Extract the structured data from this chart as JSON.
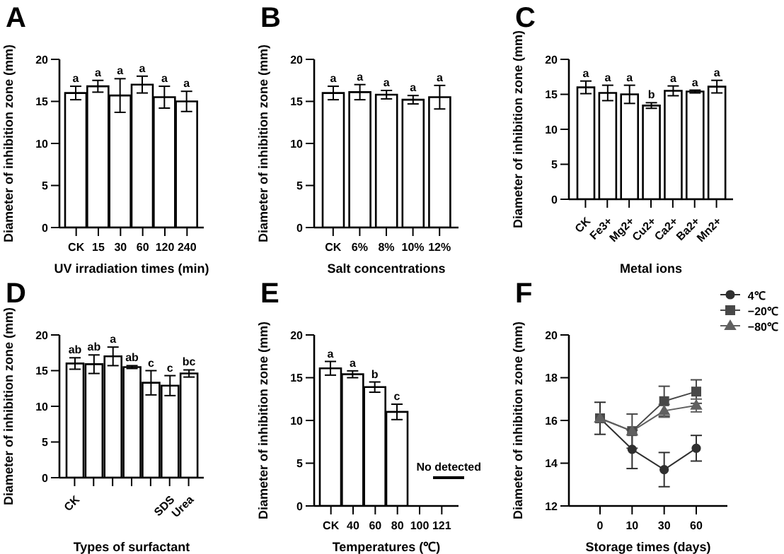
{
  "chart_data": [
    {
      "type": "bar",
      "title": "A",
      "xlabel": "UV irradiation times (min)",
      "ylabel": "Diameter of inhibition zone (mm)",
      "categories": [
        "CK",
        "15",
        "30",
        "60",
        "120",
        "240"
      ],
      "values": [
        16.0,
        16.8,
        15.7,
        17.0,
        15.5,
        15.0
      ],
      "errors": [
        0.8,
        0.7,
        2.0,
        1.0,
        1.3,
        1.2
      ],
      "value_labels": [
        "a",
        "a",
        "a",
        "a",
        "a",
        "a"
      ],
      "color": "#ffffff",
      "ylim": [
        0,
        20
      ],
      "yticks": [
        0,
        5,
        10,
        15,
        20
      ]
    },
    {
      "type": "bar",
      "title": "B",
      "xlabel": "Salt concentrations",
      "ylabel": "Diameter of inhibition zone (mm)",
      "categories": [
        "CK",
        "6%",
        "8%",
        "10%",
        "12%"
      ],
      "values": [
        16.0,
        16.1,
        15.8,
        15.2,
        15.5
      ],
      "errors": [
        0.8,
        0.9,
        0.5,
        0.5,
        1.4
      ],
      "value_labels": [
        "a",
        "a",
        "a",
        "a",
        "a"
      ],
      "color": "#ffffff",
      "ylim": [
        0,
        20
      ],
      "yticks": [
        0,
        5,
        10,
        15,
        20
      ]
    },
    {
      "type": "bar",
      "title": "C",
      "xlabel": "Metal ions",
      "ylabel": "Diameter of inhibition zone (mm)",
      "categories": [
        "CK",
        "Fe3+",
        "Mg2+",
        "Cu2+",
        "Ca2+",
        "Ba2+",
        "Mn2+"
      ],
      "values": [
        16.0,
        15.2,
        15.0,
        13.4,
        15.5,
        15.4,
        16.1
      ],
      "errors": [
        0.9,
        1.1,
        1.3,
        0.4,
        0.7,
        0.2,
        0.9
      ],
      "value_labels": [
        "a",
        "a",
        "a",
        "b",
        "a",
        "a",
        "a"
      ],
      "color": "#ffffff",
      "ylim": [
        0,
        20
      ],
      "yticks": [
        0,
        5,
        10,
        15,
        20
      ]
    },
    {
      "type": "bar",
      "title": "D",
      "xlabel": "Types of surfactant",
      "ylabel": "Diameter of inhibition zone (mm)",
      "categories": [
        "CK",
        null,
        null,
        null,
        null,
        "SDS",
        "Urea"
      ],
      "values": [
        16.0,
        15.9,
        17.0,
        15.5,
        13.3,
        12.9,
        14.6
      ],
      "errors": [
        0.8,
        1.3,
        1.3,
        0.2,
        1.7,
        1.4,
        0.5
      ],
      "value_labels": [
        "ab",
        "ab",
        "a",
        "ab",
        "c",
        "c",
        "bc"
      ],
      "color": "#ffffff",
      "ylim": [
        0,
        20
      ],
      "yticks": [
        0,
        5,
        10,
        15,
        20
      ]
    },
    {
      "type": "bar",
      "title": "E",
      "xlabel": "Temperatures (℃)",
      "ylabel": "Diameter of inhibition zone (mm)",
      "categories": [
        "CK",
        "40",
        "60",
        "80",
        "100",
        "121"
      ],
      "values": [
        16.1,
        15.4,
        13.9,
        11.0,
        null,
        null
      ],
      "errors": [
        0.8,
        0.4,
        0.6,
        0.9,
        null,
        null
      ],
      "value_labels": [
        "a",
        "a",
        "b",
        "c",
        null,
        null
      ],
      "color": "#ffffff",
      "ylim": [
        0,
        20
      ],
      "yticks": [
        0,
        5,
        10,
        15,
        20
      ],
      "annotations": [
        "No detected"
      ]
    },
    {
      "type": "line",
      "title": "F",
      "xlabel": "Storage times (days)",
      "ylabel": "Diameter of inhibition zone (mm)",
      "categories": [
        "0",
        "10",
        "30",
        "60"
      ],
      "ylim": [
        12,
        20
      ],
      "yticks": [
        12,
        14,
        16,
        18,
        20
      ],
      "legend": "top right",
      "series": [
        {
          "name": "4℃",
          "color": "#303030",
          "marker": "circle",
          "values": [
            16.1,
            14.65,
            13.7,
            14.7
          ],
          "errors": [
            0.75,
            0.9,
            0.8,
            0.6
          ]
        },
        {
          "name": "−20℃",
          "color": "#484848",
          "marker": "square",
          "values": [
            16.1,
            15.5,
            16.9,
            17.35
          ],
          "errors": [
            null,
            0.8,
            0.7,
            0.55
          ]
        },
        {
          "name": "−80℃",
          "color": "#606060",
          "marker": "triangle",
          "values": [
            16.1,
            15.5,
            16.45,
            16.7
          ],
          "errors": [
            null,
            null,
            0.3,
            0.3
          ]
        }
      ]
    }
  ]
}
